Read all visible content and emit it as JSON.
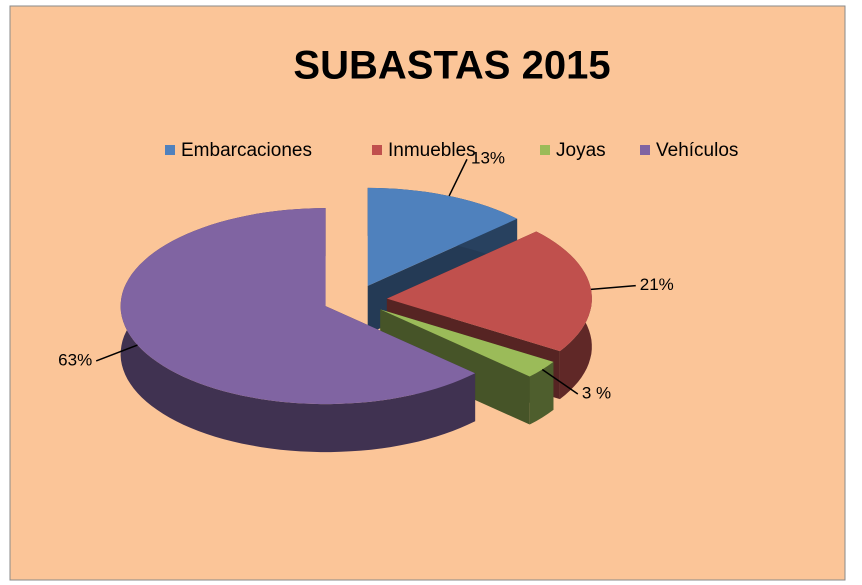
{
  "chart_data": {
    "type": "pie",
    "title": "SUBASTAS 2015",
    "categories": [
      "Embarcaciones",
      "Inmuebles",
      "Joyas",
      "Vehículos"
    ],
    "values": [
      13,
      21,
      3,
      63
    ],
    "value_labels": [
      "13%",
      "21%",
      "3 %",
      "63%"
    ],
    "colors": [
      "#4f81bd",
      "#c0504d",
      "#9bbb59",
      "#8064a2"
    ],
    "legend": "top"
  }
}
